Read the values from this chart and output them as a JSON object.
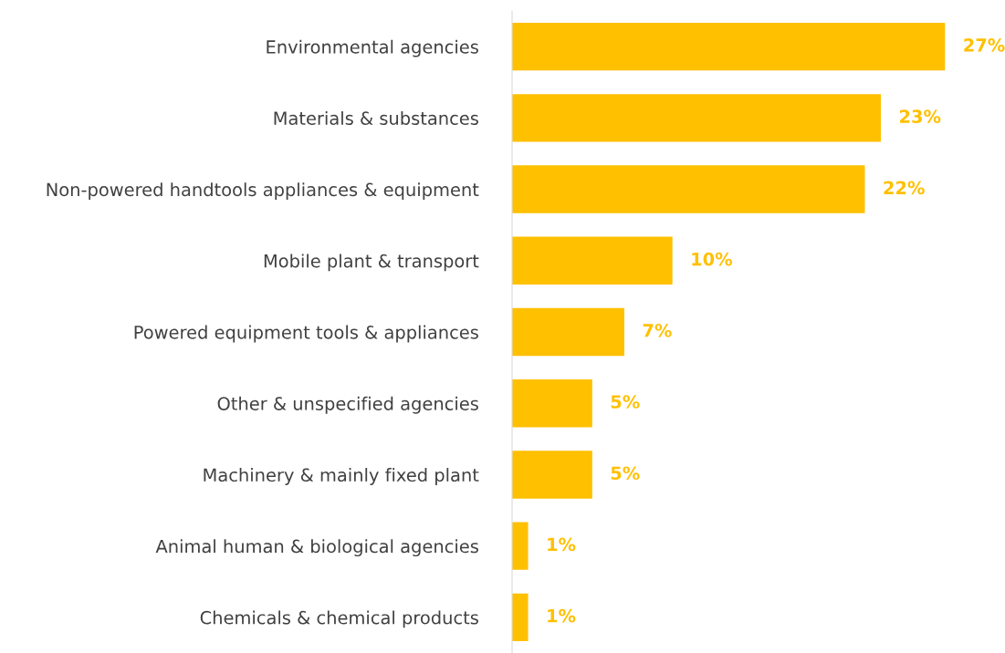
{
  "chart_data": {
    "type": "bar",
    "orientation": "horizontal",
    "categories": [
      "Environmental agencies",
      "Materials & substances",
      "Non-powered handtools appliances & equipment",
      "Mobile plant & transport",
      "Powered equipment tools & appliances",
      "Other & unspecified agencies",
      "Machinery & mainly fixed plant",
      "Animal human & biological agencies",
      "Chemicals & chemical products"
    ],
    "values": [
      27,
      23,
      22,
      10,
      7,
      5,
      5,
      1,
      1
    ],
    "value_labels": [
      "27%",
      "23%",
      "22%",
      "10%",
      "7%",
      "5%",
      "5%",
      "1%",
      "1%"
    ],
    "color": "#ffc000",
    "tick_labels": "y",
    "grid": false,
    "legend": false
  }
}
